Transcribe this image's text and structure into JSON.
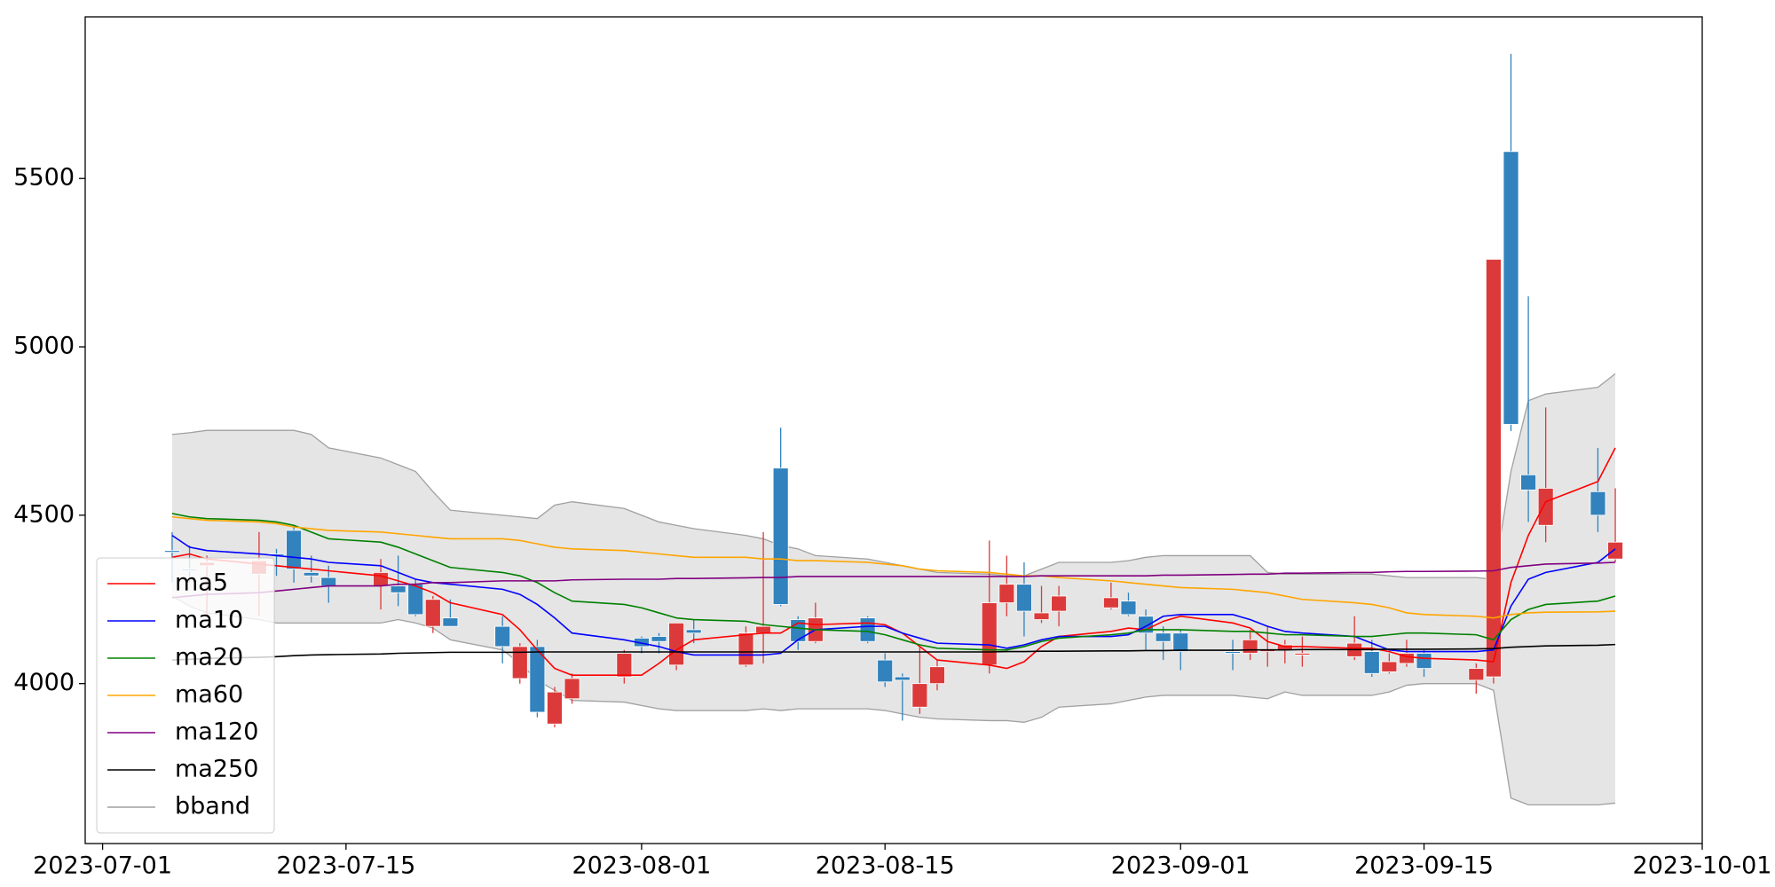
{
  "chart_data": {
    "type": "candlestick",
    "x": [
      "2023-07-05",
      "2023-07-06",
      "2023-07-07",
      "2023-07-10",
      "2023-07-11",
      "2023-07-12",
      "2023-07-13",
      "2023-07-14",
      "2023-07-17",
      "2023-07-18",
      "2023-07-19",
      "2023-07-20",
      "2023-07-21",
      "2023-07-24",
      "2023-07-25",
      "2023-07-26",
      "2023-07-27",
      "2023-07-28",
      "2023-07-31",
      "2023-08-01",
      "2023-08-02",
      "2023-08-03",
      "2023-08-04",
      "2023-08-07",
      "2023-08-08",
      "2023-08-09",
      "2023-08-10",
      "2023-08-11",
      "2023-08-14",
      "2023-08-15",
      "2023-08-16",
      "2023-08-17",
      "2023-08-18",
      "2023-08-21",
      "2023-08-22",
      "2023-08-23",
      "2023-08-24",
      "2023-08-25",
      "2023-08-28",
      "2023-08-29",
      "2023-08-30",
      "2023-08-31",
      "2023-09-01",
      "2023-09-04",
      "2023-09-05",
      "2023-09-06",
      "2023-09-07",
      "2023-09-08",
      "2023-09-11",
      "2023-09-12",
      "2023-09-13",
      "2023-09-14",
      "2023-09-15",
      "2023-09-18",
      "2023-09-19",
      "2023-09-20",
      "2023-09-21",
      "2023-09-22",
      "2023-09-25",
      "2023-09-26"
    ],
    "open": [
      4390,
      4335,
      4360,
      4365,
      4380,
      4340,
      4320,
      4290,
      4330,
      4270,
      4205,
      4250,
      4170,
      4110,
      4110,
      3915,
      3975,
      4015,
      4090,
      4110,
      4125,
      4180,
      4150,
      4150,
      4170,
      4235,
      4125,
      4195,
      4125,
      4005,
      4010,
      4000,
      4050,
      4240,
      4295,
      4215,
      4210,
      4260,
      4255,
      4205,
      4150,
      4125,
      4095,
      4090,
      4130,
      4100,
      4115,
      4090,
      4120,
      4030,
      4065,
      4090,
      4045,
      4045,
      5260,
      4770,
      4575,
      4580,
      4500,
      4420
    ],
    "high": [
      4450,
      4410,
      4380,
      4450,
      4400,
      4470,
      4380,
      4350,
      4370,
      4380,
      4310,
      4260,
      4250,
      4200,
      4120,
      4130,
      3990,
      4030,
      4100,
      4140,
      4150,
      4180,
      4190,
      4170,
      4450,
      4760,
      4200,
      4240,
      4200,
      4090,
      4030,
      4110,
      4070,
      4425,
      4380,
      4360,
      4290,
      4290,
      4300,
      4270,
      4220,
      4170,
      4160,
      4130,
      4160,
      4170,
      4130,
      4140,
      4200,
      4130,
      4090,
      4130,
      4100,
      4060,
      5260,
      5870,
      5150,
      4820,
      4700,
      4580
    ],
    "low": [
      4300,
      4300,
      4200,
      4200,
      4320,
      4300,
      4300,
      4240,
      4220,
      4230,
      4200,
      4150,
      4170,
      4060,
      4000,
      3900,
      3870,
      3940,
      4000,
      4090,
      4090,
      4040,
      4120,
      4050,
      4060,
      4230,
      4100,
      4120,
      4120,
      3990,
      3890,
      3910,
      3980,
      4030,
      4200,
      4140,
      4180,
      4170,
      4220,
      4200,
      4100,
      4070,
      4040,
      4040,
      4070,
      4050,
      4060,
      4050,
      4070,
      4020,
      4030,
      4050,
      4020,
      3970,
      4000,
      4750,
      4480,
      4420,
      4450,
      4360
    ],
    "close": [
      4395,
      4340,
      4350,
      4325,
      4385,
      4455,
      4330,
      4315,
      4290,
      4290,
      4295,
      4170,
      4195,
      4170,
      4015,
      4110,
      3880,
      3955,
      4020,
      4135,
      4140,
      4055,
      4160,
      4055,
      4150,
      4640,
      4190,
      4125,
      4195,
      4070,
      4020,
      3930,
      4000,
      4055,
      4240,
      4295,
      4190,
      4215,
      4225,
      4245,
      4200,
      4150,
      4150,
      4095,
      4090,
      4095,
      4100,
      4085,
      4080,
      4095,
      4035,
      4060,
      4090,
      4010,
      4020,
      5580,
      4620,
      4470,
      4570,
      4370
    ],
    "up_color": "#3182bd",
    "down_color": "#dc3a3a",
    "series": [
      {
        "name": "ma5",
        "color": "#ff0000",
        "values": [
          4375,
          4385,
          4370,
          4355,
          4350,
          4345,
          4340,
          4335,
          4320,
          4305,
          4290,
          4270,
          4240,
          4205,
          4160,
          4100,
          4045,
          4025,
          4025,
          4025,
          4060,
          4100,
          4130,
          4145,
          4150,
          4150,
          4180,
          4175,
          4180,
          4175,
          4150,
          4110,
          4070,
          4055,
          4045,
          4065,
          4110,
          4140,
          4155,
          4165,
          4160,
          4185,
          4200,
          4180,
          4165,
          4125,
          4110,
          4110,
          4105,
          4105,
          4095,
          4080,
          4075,
          4070,
          4065,
          4300,
          4440,
          4540,
          4600,
          4700
        ]
      },
      {
        "name": "ma10",
        "color": "#0000ff",
        "values": [
          4440,
          4405,
          4395,
          4385,
          4380,
          4375,
          4370,
          4360,
          4350,
          4330,
          4310,
          4300,
          4295,
          4280,
          4265,
          4235,
          4195,
          4150,
          4130,
          4120,
          4110,
          4095,
          4085,
          4085,
          4085,
          4090,
          4130,
          4160,
          4170,
          4170,
          4150,
          4135,
          4120,
          4115,
          4105,
          4115,
          4130,
          4140,
          4140,
          4145,
          4170,
          4200,
          4205,
          4205,
          4190,
          4170,
          4155,
          4150,
          4140,
          4120,
          4100,
          4095,
          4095,
          4095,
          4100,
          4230,
          4310,
          4330,
          4360,
          4400
        ]
      },
      {
        "name": "ma20",
        "color": "#008000",
        "values": [
          4505,
          4495,
          4490,
          4485,
          4480,
          4470,
          4450,
          4430,
          4420,
          4405,
          4385,
          4365,
          4345,
          4330,
          4320,
          4300,
          4270,
          4245,
          4235,
          4225,
          4210,
          4195,
          4190,
          4185,
          4175,
          4170,
          4165,
          4160,
          4155,
          4145,
          4130,
          4115,
          4105,
          4100,
          4100,
          4110,
          4125,
          4135,
          4145,
          4150,
          4160,
          4160,
          4160,
          4155,
          4155,
          4150,
          4145,
          4145,
          4140,
          4140,
          4145,
          4150,
          4150,
          4145,
          4130,
          4190,
          4220,
          4235,
          4245,
          4260
        ]
      },
      {
        "name": "ma60",
        "color": "#ffa500",
        "values": [
          4495,
          4490,
          4485,
          4480,
          4475,
          4465,
          4460,
          4455,
          4450,
          4445,
          4440,
          4435,
          4430,
          4430,
          4425,
          4415,
          4405,
          4400,
          4395,
          4390,
          4385,
          4380,
          4375,
          4375,
          4370,
          4370,
          4365,
          4365,
          4360,
          4355,
          4350,
          4340,
          4335,
          4330,
          4325,
          4320,
          4320,
          4315,
          4305,
          4300,
          4295,
          4290,
          4285,
          4280,
          4275,
          4270,
          4260,
          4250,
          4240,
          4235,
          4225,
          4210,
          4205,
          4200,
          4195,
          4205,
          4210,
          4212,
          4213,
          4215
        ]
      },
      {
        "name": "ma120",
        "color": "#800080",
        "values": [
          4255,
          4260,
          4265,
          4270,
          4275,
          4280,
          4285,
          4290,
          4290,
          4295,
          4295,
          4300,
          4300,
          4305,
          4305,
          4305,
          4305,
          4308,
          4310,
          4310,
          4310,
          4312,
          4312,
          4314,
          4315,
          4315,
          4318,
          4318,
          4318,
          4318,
          4318,
          4318,
          4318,
          4318,
          4318,
          4318,
          4320,
          4320,
          4320,
          4320,
          4320,
          4322,
          4322,
          4324,
          4325,
          4325,
          4328,
          4328,
          4330,
          4330,
          4332,
          4333,
          4333,
          4334,
          4335,
          4345,
          4350,
          4355,
          4358,
          4360
        ]
      },
      {
        "name": "ma250",
        "color": "#000000",
        "values": [
          4070,
          4072,
          4075,
          4078,
          4080,
          4083,
          4085,
          4086,
          4088,
          4090,
          4091,
          4092,
          4093,
          4093,
          4093,
          4094,
          4094,
          4094,
          4094,
          4094,
          4094,
          4094,
          4094,
          4094,
          4094,
          4094,
          4094,
          4094,
          4094,
          4094,
          4094,
          4094,
          4094,
          4094,
          4095,
          4095,
          4096,
          4096,
          4097,
          4097,
          4098,
          4098,
          4099,
          4099,
          4100,
          4100,
          4100,
          4101,
          4101,
          4101,
          4102,
          4102,
          4102,
          4103,
          4104,
          4108,
          4110,
          4112,
          4114,
          4116
        ]
      }
    ],
    "bband": {
      "name": "bband",
      "color": "#a0a0a0",
      "fill": "#e5e5e5",
      "upper": [
        4740,
        4745,
        4752,
        4752,
        4752,
        4752,
        4740,
        4700,
        4670,
        4650,
        4630,
        4570,
        4515,
        4500,
        4495,
        4490,
        4530,
        4540,
        4520,
        4500,
        4480,
        4470,
        4460,
        4440,
        4430,
        4410,
        4400,
        4380,
        4370,
        4360,
        4350,
        4340,
        4330,
        4325,
        4320,
        4320,
        4340,
        4360,
        4360,
        4365,
        4375,
        4380,
        4380,
        4380,
        4380,
        4330,
        4325,
        4325,
        4325,
        4325,
        4320,
        4315,
        4315,
        4315,
        4310,
        4630,
        4840,
        4860,
        4880,
        4920
      ],
      "lower": [
        4260,
        4230,
        4210,
        4190,
        4180,
        4180,
        4180,
        4180,
        4180,
        4190,
        4180,
        4165,
        4130,
        4100,
        4060,
        4010,
        3980,
        3950,
        3945,
        3935,
        3925,
        3920,
        3920,
        3920,
        3925,
        3920,
        3925,
        3925,
        3925,
        3920,
        3910,
        3900,
        3895,
        3890,
        3890,
        3885,
        3900,
        3930,
        3940,
        3950,
        3960,
        3965,
        3965,
        3965,
        3960,
        3955,
        3975,
        3965,
        3965,
        3965,
        3975,
        3995,
        4000,
        4000,
        3980,
        3660,
        3640,
        3640,
        3640,
        3645
      ]
    },
    "xlim": [
      "2023-06-30",
      "2023-10-01"
    ],
    "xticks": [
      "2023-07-01",
      "2023-07-15",
      "2023-08-01",
      "2023-08-15",
      "2023-09-01",
      "2023-09-15",
      "2023-10-01"
    ],
    "ylim": [
      3525,
      5980
    ],
    "yticks": [
      4000,
      4500,
      5000,
      5500
    ],
    "legend": "lower left"
  }
}
